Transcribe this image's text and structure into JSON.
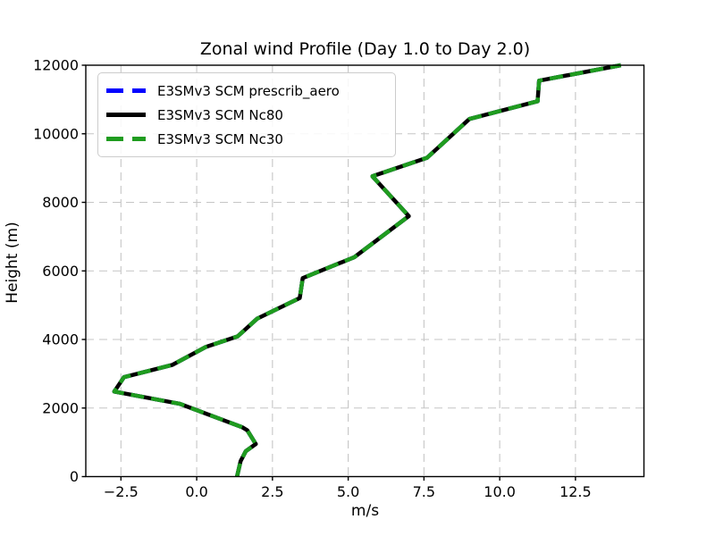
{
  "title": "Zonal wind Profile (Day 1.0 to Day 2.0)",
  "chart_data": {
    "type": "line",
    "title": "Zonal wind Profile (Day 1.0 to Day 2.0)",
    "xlabel": "m/s",
    "ylabel": "Height (m)",
    "x_range": [
      -3.66,
      14.76
    ],
    "y_range": [
      0,
      12000
    ],
    "x_ticks": {
      "values": [
        -2.5,
        0.0,
        2.5,
        5.0,
        7.5,
        10.0,
        12.5
      ],
      "labels": [
        "−2.5",
        "0.0",
        "2.5",
        "5.0",
        "7.5",
        "10.0",
        "12.5"
      ]
    },
    "y_ticks": {
      "values": [
        0,
        2000,
        4000,
        6000,
        8000,
        10000,
        12000
      ],
      "labels": [
        "0",
        "2000",
        "4000",
        "6000",
        "8000",
        "10000",
        "12000"
      ]
    },
    "grid": {
      "visible": true,
      "linestyle": "dashed",
      "color": "#c6c6c6"
    },
    "legend_position": "upper-left",
    "series_overlap": true,
    "profile": {
      "u_ms": [
        1.33,
        1.45,
        1.62,
        1.95,
        1.67,
        1.5,
        -0.55,
        -2.72,
        -2.4,
        -0.8,
        0.3,
        1.35,
        2.0,
        3.4,
        3.5,
        5.2,
        7.0,
        5.8,
        7.6,
        9.0,
        11.25,
        11.3,
        14.0
      ],
      "height_m": [
        0,
        450,
        740,
        950,
        1350,
        1440,
        2120,
        2480,
        2900,
        3260,
        3780,
        4090,
        4610,
        5210,
        5790,
        6400,
        7600,
        8760,
        9300,
        10430,
        10950,
        11550,
        12000
      ]
    },
    "series": [
      {
        "name": "E3SMv3 SCM prescrib_aero",
        "color": "#0000ff",
        "linestyle": "dashed"
      },
      {
        "name": "E3SMv3 SCM Nc80",
        "color": "#000000",
        "linestyle": "solid"
      },
      {
        "name": "E3SMv3 SCM Nc30",
        "color": "#1f9c1f",
        "linestyle": "dashed"
      }
    ]
  }
}
